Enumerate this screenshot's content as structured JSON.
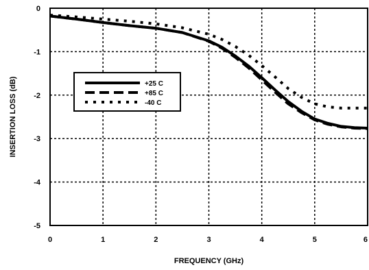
{
  "chart_data": {
    "type": "line",
    "xlabel": "FREQUENCY (GHz)",
    "ylabel": "INSERTION LOSS (dB)",
    "xlim": [
      0,
      6
    ],
    "ylim": [
      -5,
      0
    ],
    "x_ticks": [
      "0",
      "1",
      "2",
      "3",
      "4",
      "5",
      "6"
    ],
    "y_ticks": [
      "0",
      "-1",
      "-2",
      "-3",
      "-4",
      "-5"
    ],
    "grid": true,
    "legend_position": "left-center",
    "series": [
      {
        "name": "+25 C",
        "style": "solid",
        "x": [
          0,
          0.5,
          1,
          1.5,
          2,
          2.5,
          3,
          3.25,
          3.5,
          3.75,
          4,
          4.25,
          4.5,
          4.75,
          5,
          5.25,
          5.5,
          5.75,
          6
        ],
        "y": [
          -0.18,
          -0.25,
          -0.33,
          -0.4,
          -0.46,
          -0.56,
          -0.75,
          -0.9,
          -1.1,
          -1.33,
          -1.6,
          -1.88,
          -2.15,
          -2.37,
          -2.55,
          -2.65,
          -2.72,
          -2.75,
          -2.76
        ]
      },
      {
        "name": "+85 C",
        "style": "dashed",
        "x": [
          0,
          0.5,
          1,
          1.5,
          2,
          2.5,
          3,
          3.25,
          3.5,
          3.75,
          4,
          4.25,
          4.5,
          4.75,
          5,
          5.25,
          5.5,
          5.75,
          6
        ],
        "y": [
          -0.18,
          -0.25,
          -0.33,
          -0.4,
          -0.46,
          -0.56,
          -0.76,
          -0.92,
          -1.13,
          -1.37,
          -1.65,
          -1.93,
          -2.2,
          -2.4,
          -2.57,
          -2.67,
          -2.73,
          -2.76,
          -2.77
        ]
      },
      {
        "name": "-40 C",
        "style": "dotted",
        "x": [
          0,
          0.5,
          1,
          1.5,
          2,
          2.5,
          3,
          3.25,
          3.5,
          3.75,
          4,
          4.25,
          4.5,
          4.75,
          5,
          5.25,
          5.5,
          5.75,
          6
        ],
        "y": [
          -0.16,
          -0.2,
          -0.25,
          -0.3,
          -0.36,
          -0.45,
          -0.6,
          -0.72,
          -0.88,
          -1.08,
          -1.32,
          -1.58,
          -1.85,
          -2.05,
          -2.2,
          -2.27,
          -2.3,
          -2.3,
          -2.3
        ]
      }
    ]
  }
}
